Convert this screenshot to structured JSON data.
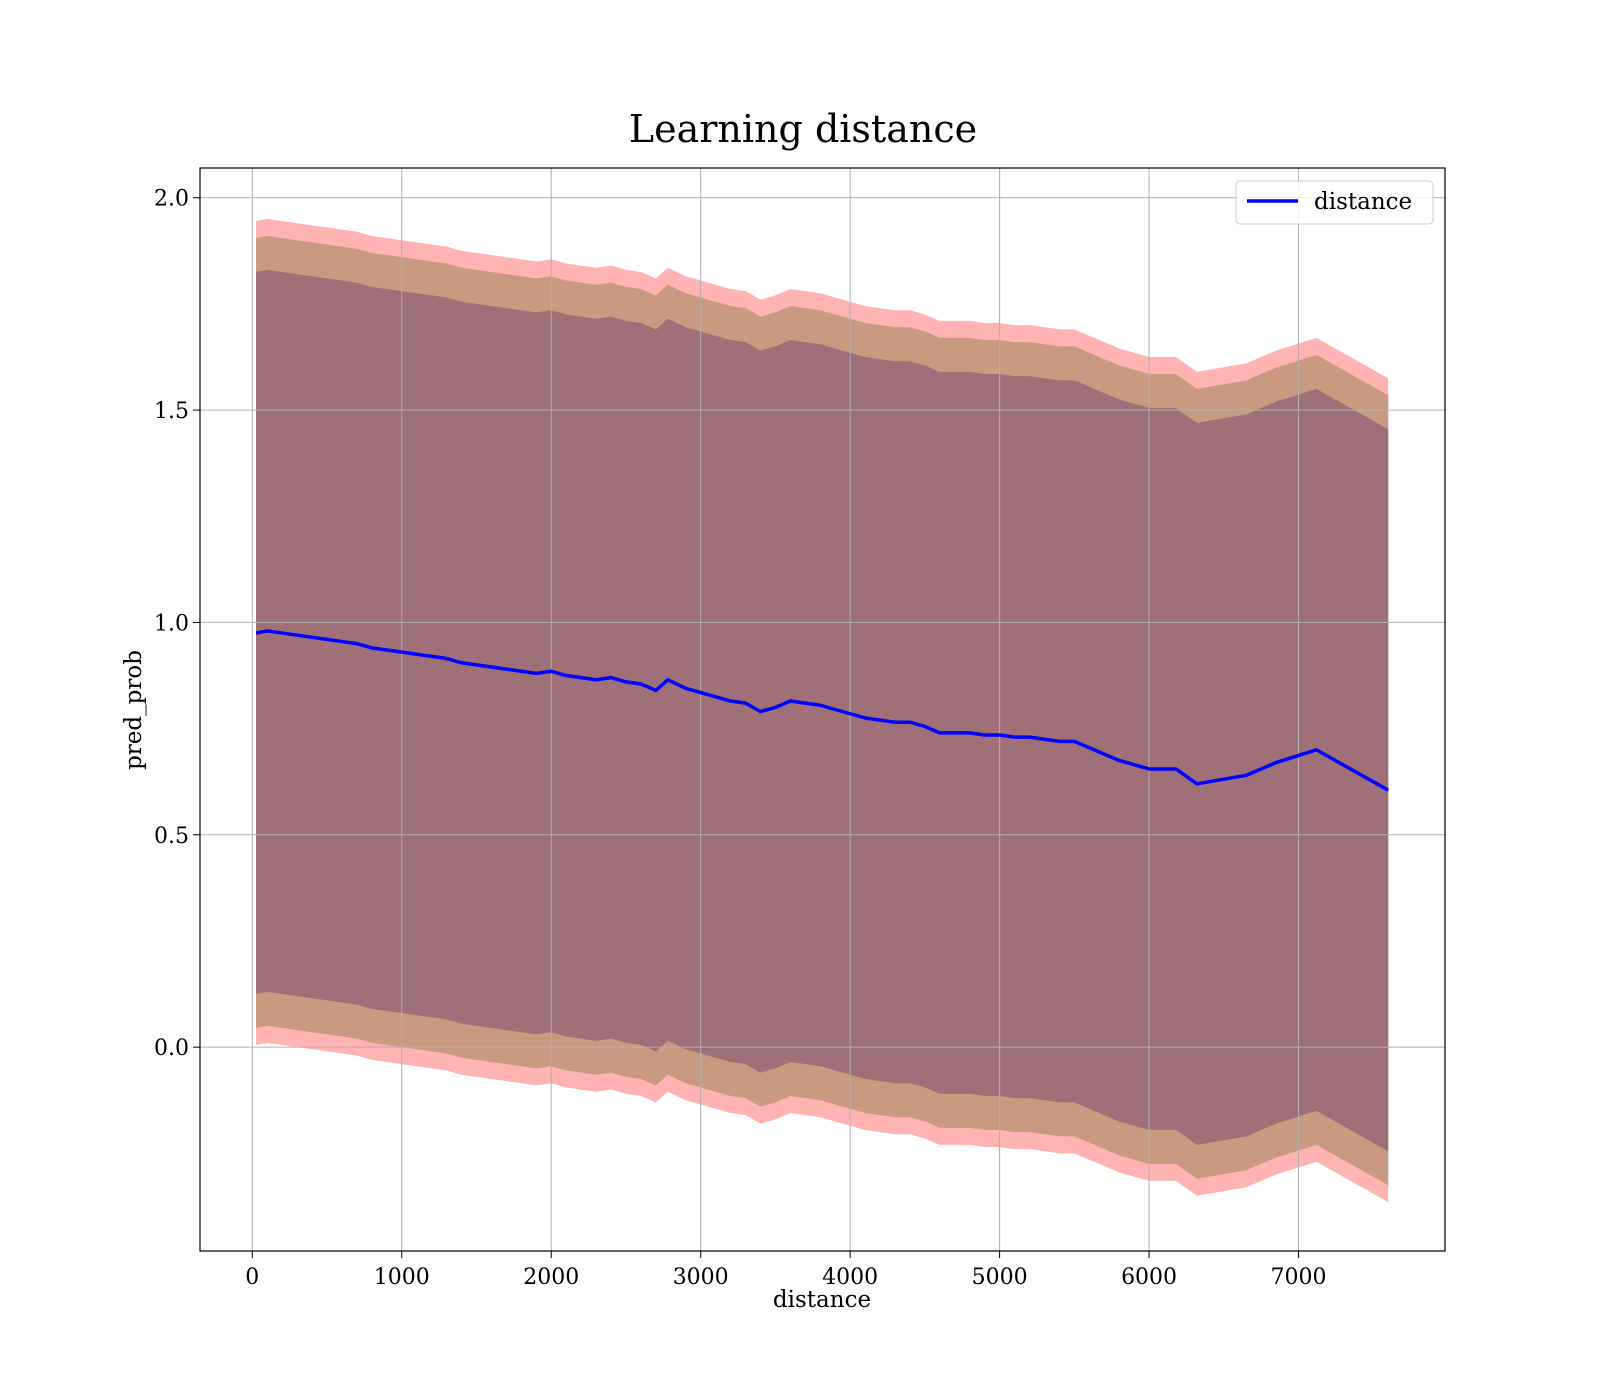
{
  "chart_data": {
    "type": "line",
    "title": "Learning distance",
    "xlabel": "distance",
    "ylabel": "pred_prob",
    "xlim": [
      -350,
      7980
    ],
    "ylim": [
      -0.48,
      2.07
    ],
    "xticks": [
      0,
      1000,
      2000,
      3000,
      4000,
      5000,
      6000,
      7000
    ],
    "yticks": [
      0.0,
      0.5,
      1.0,
      1.5,
      2.0
    ],
    "xtick_labels": [
      "0",
      "1000",
      "2000",
      "3000",
      "4000",
      "5000",
      "6000",
      "7000"
    ],
    "ytick_labels": [
      "0.0",
      "0.5",
      "1.0",
      "1.5",
      "2.0"
    ],
    "grid": true,
    "legend": {
      "position": "top-right",
      "entries": [
        "distance"
      ]
    },
    "colors": {
      "line": "#0000ff",
      "band_outer": "#ffb3b3",
      "band_middle": "#c99a80",
      "band_inner": "#a07078"
    },
    "x": [
      25,
      100,
      200,
      300,
      400,
      500,
      600,
      700,
      800,
      900,
      1000,
      1100,
      1200,
      1300,
      1400,
      1500,
      1600,
      1700,
      1800,
      1900,
      2000,
      2100,
      2200,
      2300,
      2400,
      2500,
      2600,
      2700,
      2780,
      2900,
      3000,
      3100,
      3200,
      3300,
      3400,
      3500,
      3600,
      3700,
      3800,
      3900,
      4000,
      4100,
      4200,
      4300,
      4400,
      4500,
      4600,
      4700,
      4800,
      4900,
      5000,
      5100,
      5200,
      5300,
      5400,
      5500,
      5600,
      5700,
      5800,
      5900,
      6000,
      6180,
      6320,
      6650,
      6850,
      7120,
      7600
    ],
    "series": [
      {
        "name": "distance",
        "values": [
          0.975,
          0.98,
          0.975,
          0.97,
          0.965,
          0.96,
          0.955,
          0.95,
          0.94,
          0.935,
          0.93,
          0.925,
          0.92,
          0.915,
          0.905,
          0.9,
          0.895,
          0.89,
          0.885,
          0.88,
          0.885,
          0.875,
          0.87,
          0.865,
          0.87,
          0.86,
          0.855,
          0.84,
          0.865,
          0.845,
          0.835,
          0.825,
          0.815,
          0.81,
          0.79,
          0.8,
          0.815,
          0.81,
          0.805,
          0.795,
          0.785,
          0.775,
          0.77,
          0.765,
          0.765,
          0.755,
          0.74,
          0.74,
          0.74,
          0.735,
          0.735,
          0.73,
          0.73,
          0.725,
          0.72,
          0.72,
          0.705,
          0.69,
          0.675,
          0.665,
          0.655,
          0.655,
          0.62,
          0.64,
          0.67,
          0.7,
          0.605
        ],
        "bands": [
          {
            "level": "outer",
            "offset": 0.97
          },
          {
            "level": "middle",
            "offset": 0.93
          },
          {
            "level": "inner",
            "offset": 0.85
          }
        ]
      }
    ]
  }
}
